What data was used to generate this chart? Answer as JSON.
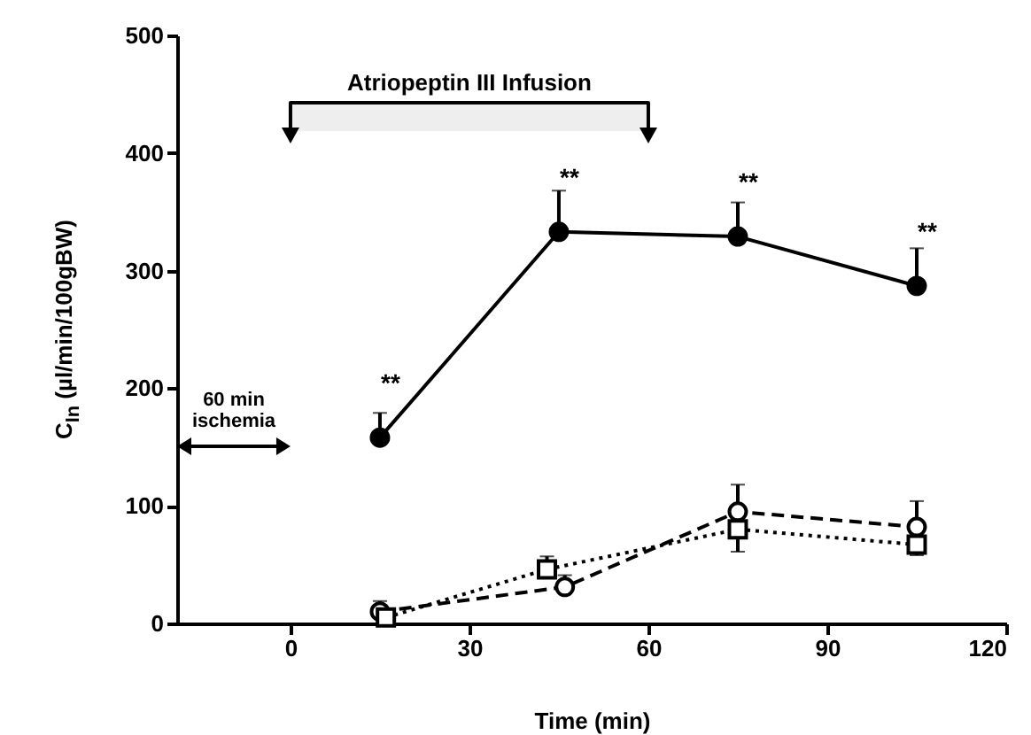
{
  "chart_data": {
    "type": "line",
    "xlabel": "Time (min)",
    "ylabel": "C$_{In}$  (µl/min/100gBW)",
    "xlim": [
      -19,
      120
    ],
    "xticks": [
      0,
      30,
      60,
      90,
      120
    ],
    "ylim": [
      0,
      500
    ],
    "yticks": [
      0,
      100,
      200,
      300,
      400,
      500
    ],
    "grid": false,
    "series": [
      {
        "color": "#000000",
        "marker": "circle",
        "line_style": "solid",
        "x": [
          15,
          45,
          75,
          105
        ],
        "values": [
          158,
          333,
          329,
          287
        ],
        "errors": [
          [
            158,
            179
          ],
          [
            333,
            368
          ],
          [
            329,
            358
          ],
          [
            287,
            319
          ]
        ]
      },
      {
        "color": "#000000",
        "marker": "circle",
        "line_style": "dashed",
        "x": [
          15,
          46,
          75,
          105
        ],
        "values": [
          10,
          31,
          95,
          82
        ],
        "errors": [
          [
            10,
            19
          ],
          [
            31,
            41
          ],
          [
            95,
            118
          ],
          [
            82,
            104
          ]
        ]
      },
      {
        "color": "#000000",
        "marker": "square",
        "line_style": "dotted",
        "x": [
          16,
          43,
          75,
          105
        ],
        "values": [
          5,
          46,
          80,
          67
        ],
        "errors": [
          null,
          [
            46,
            57
          ],
          [
            61,
            80
          ],
          [
            58,
            67
          ]
        ]
      }
    ],
    "annotations": [
      "60 min\nischemia",
      {
        "text": "**",
        "x": 15,
        "y": 158
      },
      {
        "text": "**",
        "x": 45,
        "y": 333
      },
      {
        "text": "**",
        "x": 75,
        "y": 329
      },
      {
        "text": "**",
        "x": 105,
        "y": 287
      }
    ],
    "bands": [
      {
        "axis": "x",
        "from": 0,
        "to": 60,
        "label": "Atriopeptin III Infusion"
      }
    ]
  }
}
